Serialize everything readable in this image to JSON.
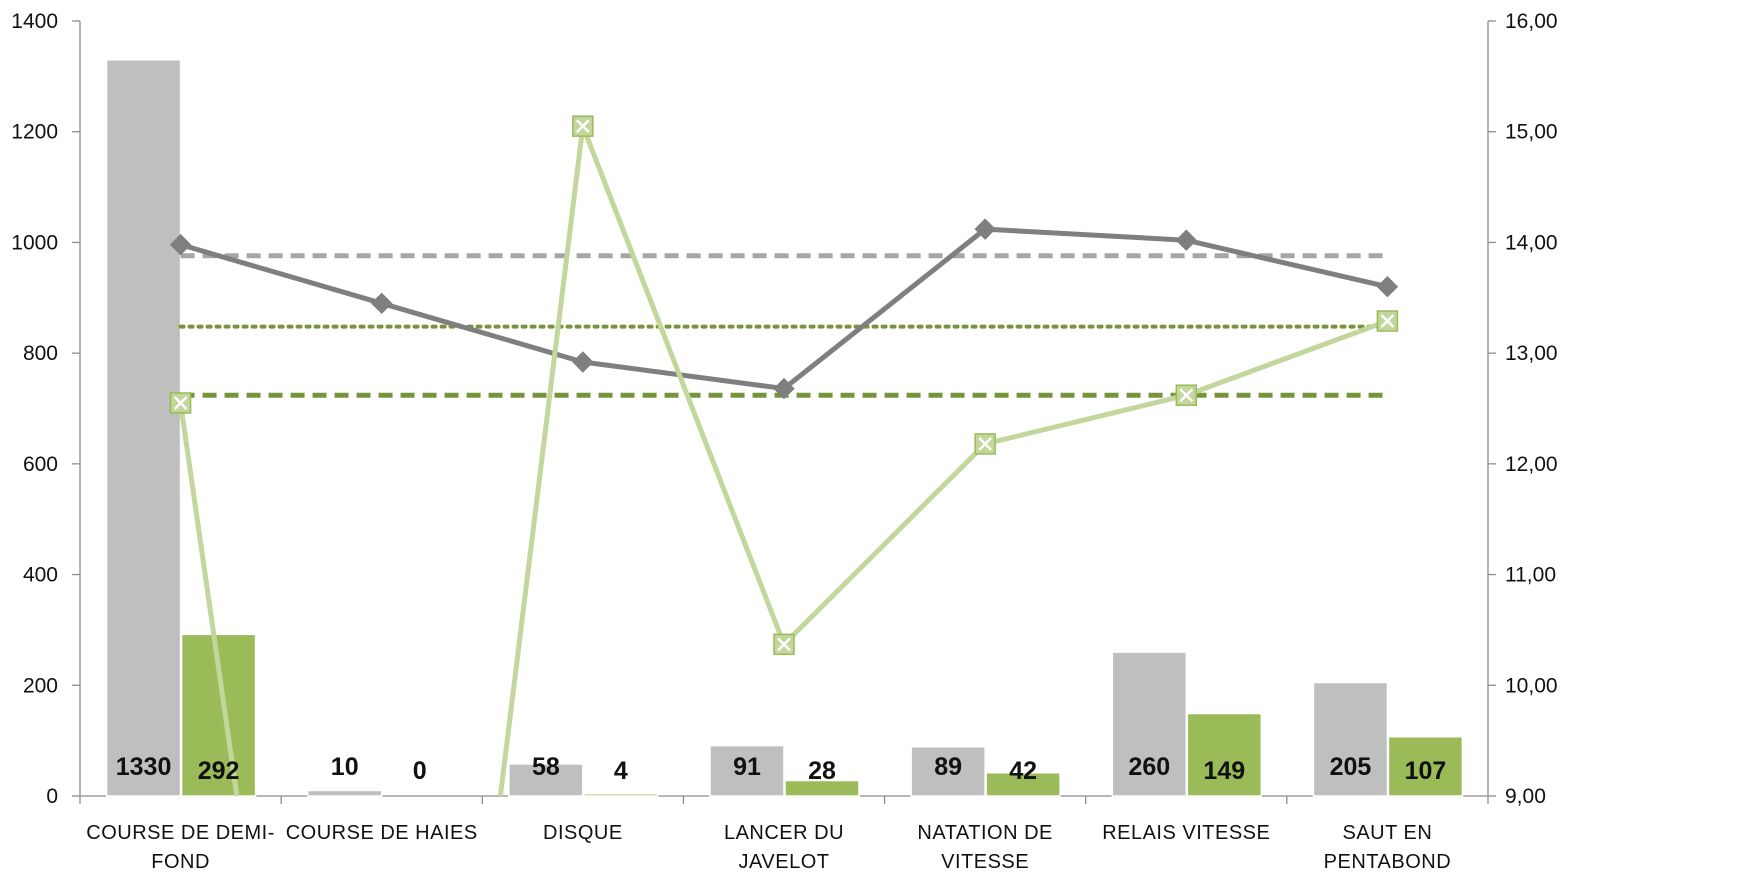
{
  "chart_data": {
    "type": "bar",
    "categories": [
      [
        "COURSE DE DEMI-",
        "FOND"
      ],
      [
        "COURSE DE HAIES"
      ],
      [
        "DISQUE"
      ],
      [
        "LANCER DU",
        "JAVELOT"
      ],
      [
        "NATATION DE",
        "VITESSE"
      ],
      [
        "RELAIS VITESSE"
      ],
      [
        "SAUT EN",
        "PENTABOND"
      ]
    ],
    "y_left": {
      "min": 0,
      "max": 1400,
      "ticks": [
        "0",
        "200",
        "400",
        "600",
        "800",
        "1000",
        "1200",
        "1400"
      ]
    },
    "y_right": {
      "min": 9,
      "max": 16,
      "ticks": [
        "9,00",
        "10,00",
        "11,00",
        "12,00",
        "13,00",
        "14,00",
        "15,00",
        "16,00"
      ]
    },
    "grid": false,
    "legend": "none",
    "bar_series": [
      {
        "axis": "left",
        "color": "#bfbfbf",
        "values": [
          1330,
          10,
          58,
          91,
          89,
          260,
          205
        ],
        "labels": [
          "1330",
          "10",
          "58",
          "91",
          "89",
          "260",
          "205"
        ]
      },
      {
        "axis": "left",
        "color": "#9bbb59",
        "values": [
          292,
          0,
          4,
          28,
          42,
          149,
          107
        ],
        "labels": [
          "292",
          "0",
          "4",
          "28",
          "42",
          "149",
          "107"
        ]
      }
    ],
    "line_series": [
      {
        "axis": "right",
        "color": "#7f7f7f",
        "marker": "diamond",
        "values": [
          13.98,
          13.45,
          12.92,
          12.68,
          14.12,
          14.02,
          13.6
        ]
      },
      {
        "axis": "right",
        "color": "#c3d69b",
        "marker": "x-square",
        "values": [
          12.55,
          null,
          15.05,
          10.37,
          12.18,
          12.62,
          13.29
        ]
      }
    ],
    "reference_lines": [
      {
        "axis": "right",
        "value": 13.88,
        "color": "#a6a6a6",
        "style": "dashed"
      },
      {
        "axis": "right",
        "value": 13.24,
        "color": "#77933c",
        "style": "dotted"
      },
      {
        "axis": "right",
        "value": 12.62,
        "color": "#77933c",
        "style": "dashed"
      }
    ]
  }
}
